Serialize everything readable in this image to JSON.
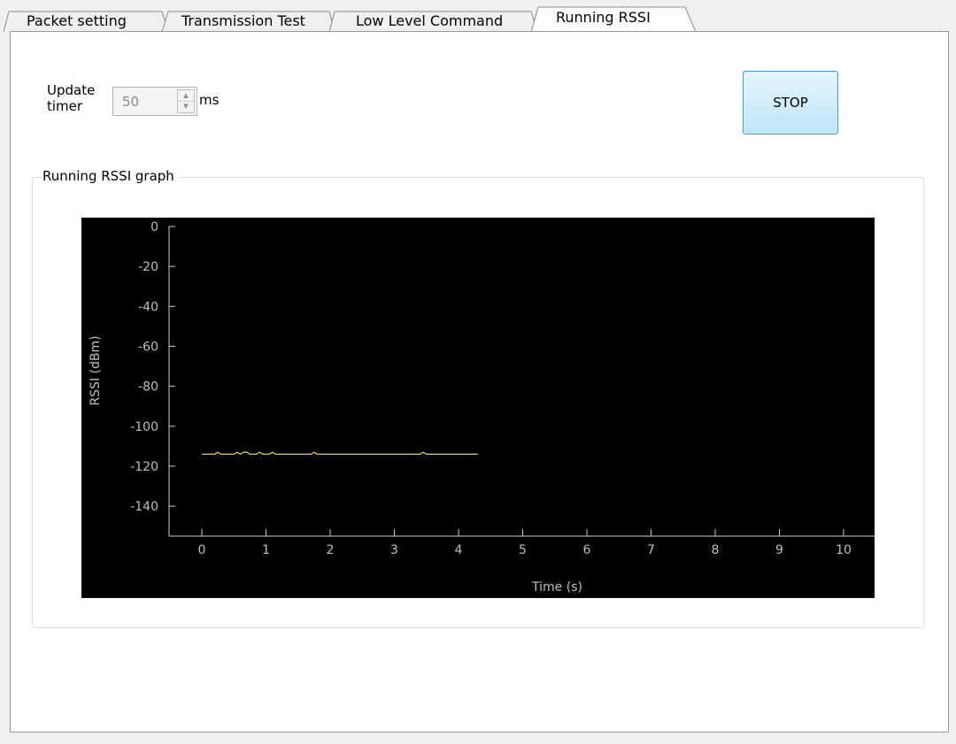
{
  "tabs": [
    {
      "label": "Packet setting",
      "active": false
    },
    {
      "label": "Transmission Test",
      "active": false
    },
    {
      "label": "Low Level Command",
      "active": false
    },
    {
      "label": "Running RSSI",
      "active": true
    }
  ],
  "controls": {
    "update_timer_label": "Update timer",
    "update_timer_value": "50",
    "unit": "ms",
    "stop_label": "STOP"
  },
  "group_title": "Running RSSI graph",
  "chart_data": {
    "type": "line",
    "xlabel": "Time (s)",
    "ylabel": "RSSI (dBm)",
    "xlim": [
      0,
      10
    ],
    "ylim": [
      -155,
      0
    ],
    "x_ticks": [
      0,
      1,
      2,
      3,
      4,
      5,
      6,
      7,
      8,
      9,
      10
    ],
    "y_ticks": [
      0,
      -20,
      -40,
      -60,
      -80,
      -100,
      -120,
      -140
    ],
    "background": "#000000",
    "axis_color": "#cccccc",
    "series": [
      {
        "color": "#d4d46a",
        "x": [
          0,
          0.05,
          0.1,
          0.15,
          0.2,
          0.25,
          0.3,
          0.35,
          0.4,
          0.45,
          0.5,
          0.55,
          0.6,
          0.65,
          0.7,
          0.75,
          0.8,
          0.85,
          0.9,
          0.95,
          1.0,
          1.05,
          1.1,
          1.15,
          1.2,
          1.25,
          1.3,
          1.35,
          1.4,
          1.45,
          1.5,
          1.55,
          1.6,
          1.65,
          1.7,
          1.75,
          1.8,
          1.85,
          1.9,
          1.95,
          2.0,
          2.05,
          2.1,
          2.15,
          2.2,
          2.25,
          2.3,
          2.35,
          2.4,
          2.45,
          2.5,
          2.55,
          2.6,
          2.65,
          2.7,
          2.75,
          2.8,
          2.85,
          2.9,
          2.95,
          3.0,
          3.05,
          3.1,
          3.15,
          3.2,
          3.25,
          3.3,
          3.35,
          3.4,
          3.45,
          3.5,
          3.55,
          3.6,
          3.65,
          3.7,
          3.75,
          3.8,
          3.85,
          3.9,
          3.95,
          4.0,
          4.05,
          4.1,
          4.15,
          4.2,
          4.25,
          4.3
        ],
        "y": [
          -114,
          -114,
          -114,
          -114,
          -114,
          -113,
          -114,
          -114,
          -114,
          -114,
          -114,
          -113,
          -114,
          -113,
          -113,
          -114,
          -114,
          -114,
          -113,
          -114,
          -114,
          -114,
          -113,
          -114,
          -114,
          -114,
          -114,
          -114,
          -114,
          -114,
          -114,
          -114,
          -114,
          -114,
          -114,
          -113,
          -114,
          -114,
          -114,
          -114,
          -114,
          -114,
          -114,
          -114,
          -114,
          -114,
          -114,
          -114,
          -114,
          -114,
          -114,
          -114,
          -114,
          -114,
          -114,
          -114,
          -114,
          -114,
          -114,
          -114,
          -114,
          -114,
          -114,
          -114,
          -114,
          -114,
          -114,
          -114,
          -114,
          -113,
          -114,
          -114,
          -114,
          -114,
          -114,
          -114,
          -114,
          -114,
          -114,
          -114,
          -114,
          -114,
          -114,
          -114,
          -114,
          -114,
          -114
        ]
      }
    ]
  }
}
